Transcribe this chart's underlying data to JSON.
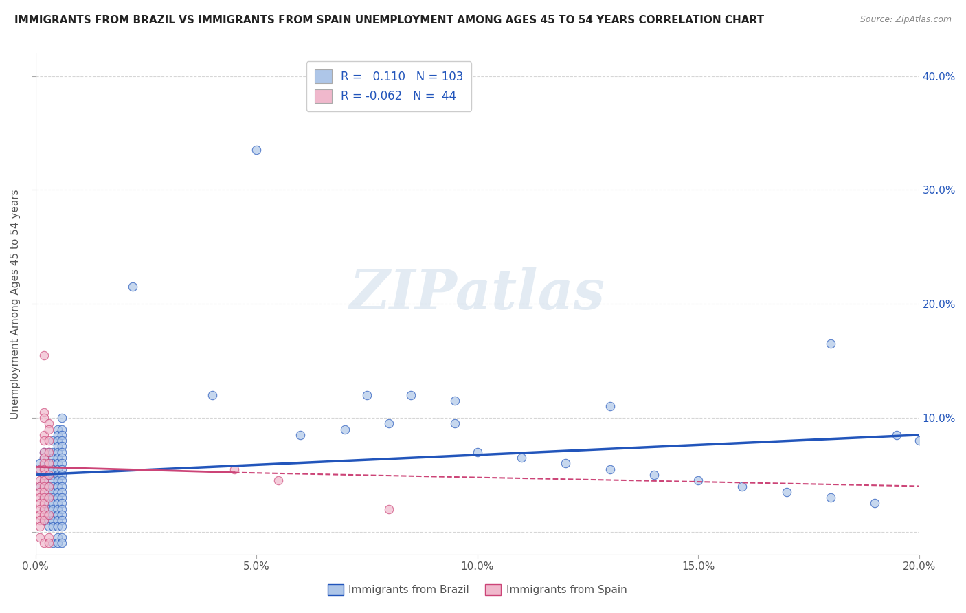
{
  "title": "IMMIGRANTS FROM BRAZIL VS IMMIGRANTS FROM SPAIN UNEMPLOYMENT AMONG AGES 45 TO 54 YEARS CORRELATION CHART",
  "source": "Source: ZipAtlas.com",
  "ylabel": "Unemployment Among Ages 45 to 54 years",
  "xlabel_brazil": "Immigrants from Brazil",
  "xlabel_spain": "Immigrants from Spain",
  "xlim": [
    0.0,
    0.2
  ],
  "ylim": [
    -0.02,
    0.42
  ],
  "xticks": [
    0.0,
    0.05,
    0.1,
    0.15,
    0.2
  ],
  "xticklabels": [
    "0.0%",
    "5.0%",
    "10.0%",
    "15.0%",
    "20.0%"
  ],
  "yticks": [
    0.0,
    0.1,
    0.2,
    0.3,
    0.4
  ],
  "yticklabels_right": [
    "",
    "10.0%",
    "20.0%",
    "30.0%",
    "40.0%"
  ],
  "R_brazil": 0.11,
  "N_brazil": 103,
  "R_spain": -0.062,
  "N_spain": 44,
  "brazil_color": "#aec6e8",
  "spain_color": "#f0b8cc",
  "brazil_line_color": "#2255bb",
  "spain_line_color": "#cc4477",
  "watermark": "ZIPatlas",
  "background_color": "#ffffff",
  "grid_color": "#cccccc",
  "brazil_scatter": [
    [
      0.001,
      0.055
    ],
    [
      0.001,
      0.04
    ],
    [
      0.001,
      0.06
    ],
    [
      0.002,
      0.05
    ],
    [
      0.002,
      0.07
    ],
    [
      0.002,
      0.065
    ],
    [
      0.002,
      0.045
    ],
    [
      0.002,
      0.03
    ],
    [
      0.002,
      0.02
    ],
    [
      0.002,
      0.01
    ],
    [
      0.003,
      0.055
    ],
    [
      0.003,
      0.07
    ],
    [
      0.003,
      0.06
    ],
    [
      0.003,
      0.05
    ],
    [
      0.003,
      0.04
    ],
    [
      0.003,
      0.035
    ],
    [
      0.003,
      0.03
    ],
    [
      0.003,
      0.025
    ],
    [
      0.003,
      0.02
    ],
    [
      0.003,
      0.015
    ],
    [
      0.003,
      0.01
    ],
    [
      0.003,
      0.005
    ],
    [
      0.004,
      0.08
    ],
    [
      0.004,
      0.07
    ],
    [
      0.004,
      0.065
    ],
    [
      0.004,
      0.06
    ],
    [
      0.004,
      0.055
    ],
    [
      0.004,
      0.05
    ],
    [
      0.004,
      0.045
    ],
    [
      0.004,
      0.04
    ],
    [
      0.004,
      0.035
    ],
    [
      0.004,
      0.03
    ],
    [
      0.004,
      0.025
    ],
    [
      0.004,
      0.02
    ],
    [
      0.004,
      0.015
    ],
    [
      0.004,
      0.01
    ],
    [
      0.004,
      0.005
    ],
    [
      0.004,
      -0.01
    ],
    [
      0.005,
      0.09
    ],
    [
      0.005,
      0.085
    ],
    [
      0.005,
      0.08
    ],
    [
      0.005,
      0.075
    ],
    [
      0.005,
      0.07
    ],
    [
      0.005,
      0.065
    ],
    [
      0.005,
      0.06
    ],
    [
      0.005,
      0.055
    ],
    [
      0.005,
      0.05
    ],
    [
      0.005,
      0.045
    ],
    [
      0.005,
      0.04
    ],
    [
      0.005,
      0.035
    ],
    [
      0.005,
      0.03
    ],
    [
      0.005,
      0.025
    ],
    [
      0.005,
      0.02
    ],
    [
      0.005,
      0.015
    ],
    [
      0.005,
      0.01
    ],
    [
      0.005,
      0.005
    ],
    [
      0.005,
      -0.005
    ],
    [
      0.005,
      -0.01
    ],
    [
      0.006,
      0.1
    ],
    [
      0.006,
      0.09
    ],
    [
      0.006,
      0.085
    ],
    [
      0.006,
      0.08
    ],
    [
      0.006,
      0.075
    ],
    [
      0.006,
      0.07
    ],
    [
      0.006,
      0.065
    ],
    [
      0.006,
      0.06
    ],
    [
      0.006,
      0.055
    ],
    [
      0.006,
      0.05
    ],
    [
      0.006,
      0.045
    ],
    [
      0.006,
      0.04
    ],
    [
      0.006,
      0.035
    ],
    [
      0.006,
      0.03
    ],
    [
      0.006,
      0.025
    ],
    [
      0.006,
      0.02
    ],
    [
      0.006,
      0.015
    ],
    [
      0.006,
      0.01
    ],
    [
      0.006,
      0.005
    ],
    [
      0.006,
      -0.005
    ],
    [
      0.006,
      -0.01
    ],
    [
      0.05,
      0.335
    ],
    [
      0.022,
      0.215
    ],
    [
      0.04,
      0.12
    ],
    [
      0.075,
      0.12
    ],
    [
      0.085,
      0.12
    ],
    [
      0.095,
      0.115
    ],
    [
      0.13,
      0.11
    ],
    [
      0.095,
      0.095
    ],
    [
      0.18,
      0.165
    ],
    [
      0.195,
      0.085
    ],
    [
      0.06,
      0.085
    ],
    [
      0.07,
      0.09
    ],
    [
      0.08,
      0.095
    ],
    [
      0.1,
      0.07
    ],
    [
      0.11,
      0.065
    ],
    [
      0.12,
      0.06
    ],
    [
      0.13,
      0.055
    ],
    [
      0.14,
      0.05
    ],
    [
      0.15,
      0.045
    ],
    [
      0.16,
      0.04
    ],
    [
      0.17,
      0.035
    ],
    [
      0.18,
      0.03
    ],
    [
      0.19,
      0.025
    ],
    [
      0.2,
      0.08
    ]
  ],
  "spain_scatter": [
    [
      0.001,
      0.055
    ],
    [
      0.001,
      0.045
    ],
    [
      0.001,
      0.04
    ],
    [
      0.001,
      0.035
    ],
    [
      0.001,
      0.03
    ],
    [
      0.001,
      0.025
    ],
    [
      0.001,
      0.02
    ],
    [
      0.001,
      0.015
    ],
    [
      0.001,
      0.01
    ],
    [
      0.001,
      0.005
    ],
    [
      0.001,
      -0.005
    ],
    [
      0.002,
      0.155
    ],
    [
      0.002,
      0.105
    ],
    [
      0.002,
      0.1
    ],
    [
      0.002,
      0.085
    ],
    [
      0.002,
      0.08
    ],
    [
      0.002,
      0.07
    ],
    [
      0.002,
      0.065
    ],
    [
      0.002,
      0.06
    ],
    [
      0.002,
      0.055
    ],
    [
      0.002,
      0.05
    ],
    [
      0.002,
      0.045
    ],
    [
      0.002,
      0.04
    ],
    [
      0.002,
      0.035
    ],
    [
      0.002,
      0.03
    ],
    [
      0.002,
      0.025
    ],
    [
      0.002,
      0.02
    ],
    [
      0.002,
      0.015
    ],
    [
      0.002,
      0.01
    ],
    [
      0.002,
      -0.01
    ],
    [
      0.003,
      0.095
    ],
    [
      0.003,
      0.09
    ],
    [
      0.003,
      0.08
    ],
    [
      0.003,
      0.07
    ],
    [
      0.003,
      0.06
    ],
    [
      0.003,
      0.05
    ],
    [
      0.003,
      0.04
    ],
    [
      0.003,
      0.03
    ],
    [
      0.003,
      0.015
    ],
    [
      0.003,
      -0.005
    ],
    [
      0.003,
      -0.01
    ],
    [
      0.045,
      0.055
    ],
    [
      0.055,
      0.045
    ],
    [
      0.08,
      0.02
    ]
  ]
}
